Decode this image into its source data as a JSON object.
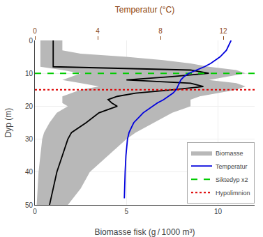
{
  "chart_data": {
    "type": "line",
    "xlabel": "Biomasse fisk (g / 1000 m³)",
    "ylabel": "Dyp (m)",
    "x2label": "Temperatur (°C)",
    "x2_color": "#8b4513",
    "xlim": [
      0,
      12
    ],
    "xticks": [
      0,
      5,
      10
    ],
    "x2lim": [
      0,
      14
    ],
    "x2ticks": [
      0,
      4,
      8,
      12
    ],
    "ylim": [
      50,
      0
    ],
    "yticks": [
      0,
      10,
      20,
      30,
      40,
      50
    ],
    "grid": true,
    "legend": "lower right",
    "series": [
      {
        "name": "Biomasse",
        "color": "black",
        "y": [
          0,
          1,
          2,
          3,
          4,
          5,
          6,
          7,
          8,
          9,
          10,
          11,
          12,
          13,
          14,
          15,
          16,
          17,
          18,
          19,
          20,
          22,
          25,
          28,
          30,
          35,
          40,
          45,
          50
        ],
        "values": [
          1.0,
          1.0,
          1.0,
          1.0,
          1.0,
          1.0,
          1.0,
          1.0,
          1.0,
          8.5,
          9.5,
          7.5,
          5.0,
          8.5,
          9.2,
          7.5,
          5.5,
          4.5,
          4.0,
          4.2,
          4.5,
          3.5,
          2.8,
          2.0,
          1.8,
          1.5,
          1.2,
          1.0,
          0.8
        ],
        "band": {
          "color": "#b8b8b8",
          "lower": [
            0.3,
            0.3,
            0.3,
            0.3,
            0.3,
            0.3,
            0.3,
            0.3,
            0.3,
            1.5,
            2.5,
            2.0,
            1.5,
            2.5,
            3.5,
            2.5,
            2.0,
            1.5,
            1.5,
            1.5,
            1.8,
            1.2,
            0.8,
            0.5,
            0.4,
            0.3,
            0.2,
            0.15,
            0.1
          ],
          "upper": [
            1.5,
            1.5,
            1.5,
            1.5,
            2.5,
            5.0,
            7.0,
            8.5,
            9.5,
            11.0,
            11.5,
            10.5,
            9.5,
            11.0,
            11.5,
            11.0,
            10.0,
            9.0,
            8.5,
            8.5,
            8.5,
            7.5,
            6.5,
            5.5,
            5.0,
            4.0,
            3.0,
            2.5,
            1.8
          ]
        }
      },
      {
        "name": "Temperatur",
        "color": "#0000dd",
        "axis": "x2",
        "y": [
          0,
          1,
          2,
          3,
          4,
          5,
          6,
          7,
          8,
          9,
          10,
          11,
          12,
          13,
          14,
          15,
          16,
          17,
          18,
          19,
          20,
          21,
          22,
          23,
          24,
          25,
          26,
          27,
          28,
          30,
          32,
          35,
          40,
          45,
          48
        ],
        "values": [
          12.5,
          12.4,
          12.3,
          12.2,
          12.0,
          11.8,
          11.5,
          11.2,
          10.8,
          10.3,
          9.8,
          9.5,
          9.3,
          9.2,
          9.1,
          9.0,
          8.8,
          8.5,
          8.2,
          7.8,
          7.5,
          7.2,
          6.9,
          6.7,
          6.5,
          6.3,
          6.2,
          6.1,
          6.0,
          5.9,
          5.85,
          5.8,
          5.75,
          5.7,
          5.7
        ]
      }
    ],
    "hlines": [
      {
        "name": "Siktedyp x2",
        "value": 10,
        "color": "#00cc00",
        "line_style": "dashed"
      },
      {
        "name": "Hypolimnion",
        "value": 15,
        "color": "#dd0000",
        "line_style": "dotted"
      }
    ]
  }
}
